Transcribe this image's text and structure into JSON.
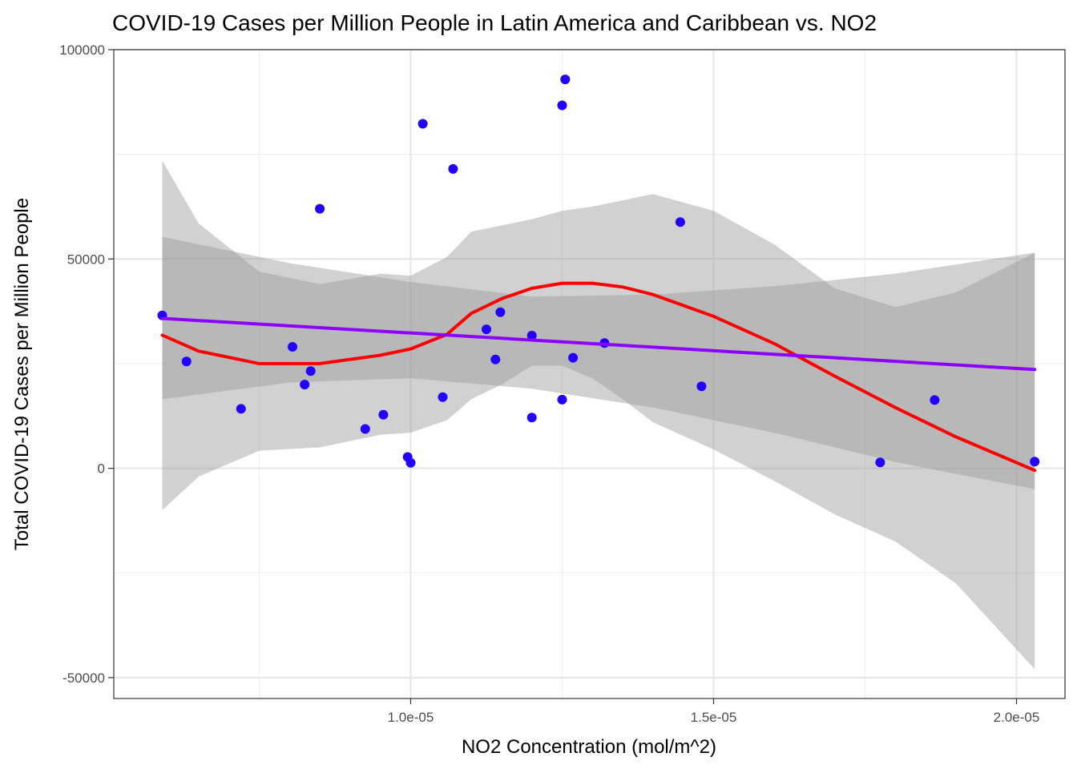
{
  "chart_data": {
    "type": "scatter",
    "title": "COVID-19 Cases per Million People in Latin America and Caribbean vs. NO2",
    "xlabel": "NO2 Concentration (mol/m^2)",
    "ylabel": "Total COVID-19 Cases per Million People",
    "xlim": [
      5.1e-06,
      2.08e-05
    ],
    "ylim": [
      -55000,
      100000
    ],
    "x_ticks": [
      {
        "value": 1e-05,
        "label": "1.0e-05"
      },
      {
        "value": 1.5e-05,
        "label": "1.5e-05"
      },
      {
        "value": 2e-05,
        "label": "2.0e-05"
      }
    ],
    "y_ticks": [
      {
        "value": -50000,
        "label": "-50000"
      },
      {
        "value": 0,
        "label": "0"
      },
      {
        "value": 50000,
        "label": "50000"
      },
      {
        "value": 100000,
        "label": "100000"
      }
    ],
    "grid": true,
    "points_color": "#2200ff",
    "points": [
      {
        "x": 5.9e-06,
        "y": 36500
      },
      {
        "x": 6.3e-06,
        "y": 25500
      },
      {
        "x": 7.2e-06,
        "y": 14200
      },
      {
        "x": 8.05e-06,
        "y": 29000
      },
      {
        "x": 8.25e-06,
        "y": 20000
      },
      {
        "x": 8.35e-06,
        "y": 23200
      },
      {
        "x": 8.5e-06,
        "y": 62000
      },
      {
        "x": 9.25e-06,
        "y": 9400
      },
      {
        "x": 9.55e-06,
        "y": 12800
      },
      {
        "x": 9.95e-06,
        "y": 2700
      },
      {
        "x": 1e-05,
        "y": 1300
      },
      {
        "x": 1.02e-05,
        "y": 82300
      },
      {
        "x": 1.053e-05,
        "y": 17000
      },
      {
        "x": 1.07e-05,
        "y": 71500
      },
      {
        "x": 1.125e-05,
        "y": 33200
      },
      {
        "x": 1.14e-05,
        "y": 26000
      },
      {
        "x": 1.148e-05,
        "y": 37300
      },
      {
        "x": 1.2e-05,
        "y": 12100
      },
      {
        "x": 1.2e-05,
        "y": 31700
      },
      {
        "x": 1.25e-05,
        "y": 16400
      },
      {
        "x": 1.25e-05,
        "y": 86700
      },
      {
        "x": 1.255e-05,
        "y": 92900
      },
      {
        "x": 1.268e-05,
        "y": 26400
      },
      {
        "x": 1.32e-05,
        "y": 29900
      },
      {
        "x": 1.445e-05,
        "y": 58800
      },
      {
        "x": 1.48e-05,
        "y": 19600
      },
      {
        "x": 1.775e-05,
        "y": 1400
      },
      {
        "x": 1.865e-05,
        "y": 16300
      },
      {
        "x": 2.03e-05,
        "y": 1600
      }
    ],
    "lm_line": {
      "color": "#8b00ff",
      "x": [
        5.9e-06,
        2.03e-05
      ],
      "y": [
        35800,
        23600
      ]
    },
    "lm_band": {
      "x": [
        5.9e-06,
        8e-06,
        1e-05,
        1.2e-05,
        1.4e-05,
        1.6e-05,
        1.8e-05,
        2.03e-05
      ],
      "upper": [
        55300,
        49000,
        44500,
        41000,
        41500,
        43500,
        46500,
        51500
      ],
      "lower": [
        16500,
        20500,
        21500,
        19000,
        14500,
        8500,
        1500,
        -5000
      ]
    },
    "loess_line": {
      "color": "#ff0000",
      "x": [
        5.9e-06,
        6.5e-06,
        7.5e-06,
        8.5e-06,
        9.5e-06,
        1e-05,
        1.06e-05,
        1.1e-05,
        1.15e-05,
        1.2e-05,
        1.25e-05,
        1.3e-05,
        1.35e-05,
        1.4e-05,
        1.5e-05,
        1.6e-05,
        1.7e-05,
        1.8e-05,
        1.9e-05,
        2.03e-05
      ],
      "y": [
        31800,
        28000,
        25000,
        25000,
        27000,
        28500,
        32000,
        37000,
        40500,
        43000,
        44200,
        44200,
        43300,
        41500,
        36300,
        29800,
        22000,
        14500,
        7500,
        -500
      ]
    },
    "loess_band": {
      "x": [
        5.9e-06,
        6.5e-06,
        7.5e-06,
        8.5e-06,
        9.5e-06,
        1e-05,
        1.06e-05,
        1.1e-05,
        1.15e-05,
        1.2e-05,
        1.25e-05,
        1.3e-05,
        1.35e-05,
        1.4e-05,
        1.5e-05,
        1.6e-05,
        1.7e-05,
        1.8e-05,
        1.9e-05,
        2.03e-05
      ],
      "upper": [
        73500,
        58500,
        47000,
        44000,
        46500,
        46000,
        50500,
        56500,
        58000,
        59500,
        61500,
        62500,
        64000,
        65500,
        61500,
        53500,
        43000,
        38500,
        42000,
        51500
      ],
      "lower": [
        -10000,
        -2000,
        4200,
        5000,
        8000,
        8500,
        11500,
        16500,
        20000,
        24500,
        24500,
        21500,
        16500,
        11000,
        4500,
        -3000,
        -11000,
        -17500,
        -27500,
        -48000
      ]
    }
  }
}
